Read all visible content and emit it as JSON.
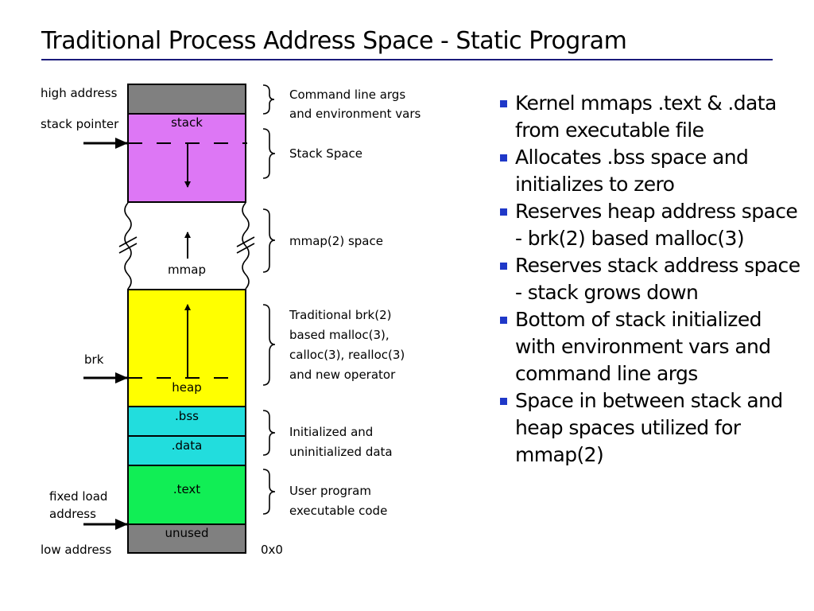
{
  "title": "Traditional Process Address Space - Static Program",
  "colors": {
    "title_rule": "#1a1a7a",
    "gray": "#808080",
    "stack": "#dd77f5",
    "heap": "#ffff00",
    "data": "#22dddd",
    "text": "#11ee55",
    "bullet": "#1f38c8"
  },
  "diagram": {
    "left_labels": {
      "high_address": "high address",
      "stack_pointer": "stack pointer",
      "brk": "brk",
      "fixed_load_1": "fixed load",
      "fixed_load_2": "address",
      "low_address": "low address",
      "zero": "0x0"
    },
    "segments": {
      "stack": "stack",
      "mmap": "mmap",
      "heap": "heap",
      "bss": ".bss",
      "data": ".data",
      "text": ".text",
      "unused": "unused"
    },
    "annotations": {
      "cmdline_1": "Command line args",
      "cmdline_2": "and environment vars",
      "stack_space": "Stack Space",
      "mmap_space": "mmap(2) space",
      "heap_1": "Traditional brk(2)",
      "heap_2": "based malloc(3),",
      "heap_3": "calloc(3), realloc(3)",
      "heap_4": "and new operator",
      "data_1": "Initialized and",
      "data_2": "uninitialized data",
      "text_1": "User program",
      "text_2": "executable code"
    }
  },
  "bullets": [
    "Kernel mmaps .text & .data from executable file",
    "Allocates .bss space and initializes to zero",
    "Reserves heap address space - brk(2) based malloc(3)",
    "Reserves stack address space - stack grows down",
    "Bottom of stack initialized with environment vars and command line args",
    "Space in between stack and heap spaces utilized for mmap(2)"
  ]
}
